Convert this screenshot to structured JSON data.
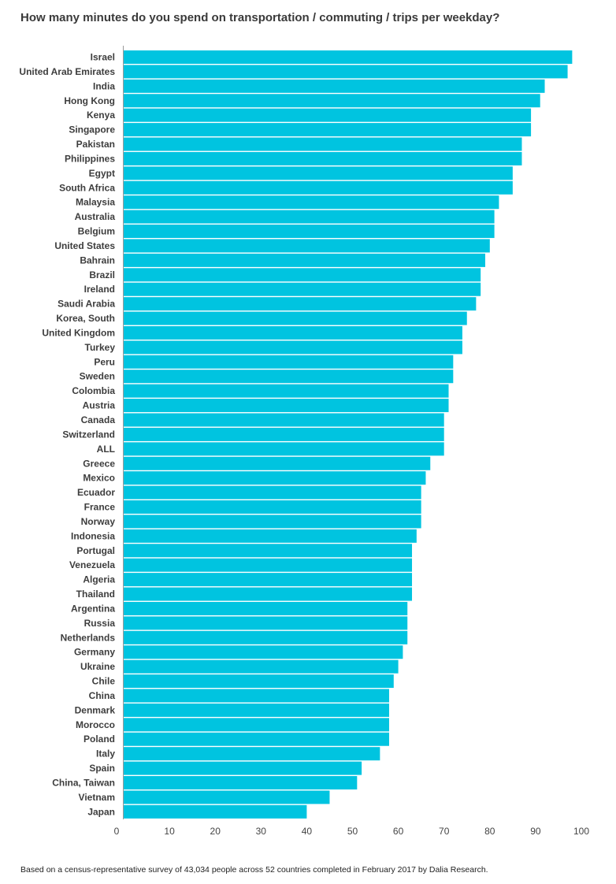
{
  "title": "How many minutes do you spend on transportation / commuting / trips per weekday?",
  "footnote": "Based on a census-representative survey of 43,034 people across 52 countries completed in February 2017 by Dalia Research.",
  "colors": {
    "bar": "#00c4e0",
    "axis": "#999999",
    "text": "#3d3d3d"
  },
  "chart_data": {
    "type": "bar",
    "orientation": "horizontal",
    "title": "How many minutes do you spend on transportation / commuting / trips per weekday?",
    "xlabel": "",
    "ylabel": "",
    "xlim": [
      0,
      100
    ],
    "xticks": [
      0,
      10,
      20,
      30,
      40,
      50,
      60,
      70,
      80,
      90,
      100
    ],
    "grid": false,
    "legend": "none",
    "categories": [
      "Israel",
      "United Arab Emirates",
      "India",
      "Hong Kong",
      "Kenya",
      "Singapore",
      "Pakistan",
      "Philippines",
      "Egypt",
      "South Africa",
      "Malaysia",
      "Australia",
      "Belgium",
      "United States",
      "Bahrain",
      "Brazil",
      "Ireland",
      "Saudi Arabia",
      "Korea, South",
      "United Kingdom",
      "Turkey",
      "Peru",
      "Sweden",
      "Colombia",
      "Austria",
      "Canada",
      "Switzerland",
      "ALL",
      "Greece",
      "Mexico",
      "Ecuador",
      "France",
      "Norway",
      "Indonesia",
      "Portugal",
      "Venezuela",
      "Algeria",
      "Thailand",
      "Argentina",
      "Russia",
      "Netherlands",
      "Germany",
      "Ukraine",
      "Chile",
      "China",
      "Denmark",
      "Morocco",
      "Poland",
      "Italy",
      "Spain",
      "China, Taiwan",
      "Vietnam",
      "Japan"
    ],
    "values": [
      98,
      97,
      92,
      91,
      89,
      89,
      87,
      87,
      85,
      85,
      82,
      81,
      81,
      80,
      79,
      78,
      78,
      77,
      75,
      74,
      74,
      72,
      72,
      71,
      71,
      70,
      70,
      70,
      67,
      66,
      65,
      65,
      65,
      64,
      63,
      63,
      63,
      63,
      62,
      62,
      62,
      61,
      60,
      59,
      58,
      58,
      58,
      58,
      56,
      52,
      51,
      45,
      40
    ]
  }
}
